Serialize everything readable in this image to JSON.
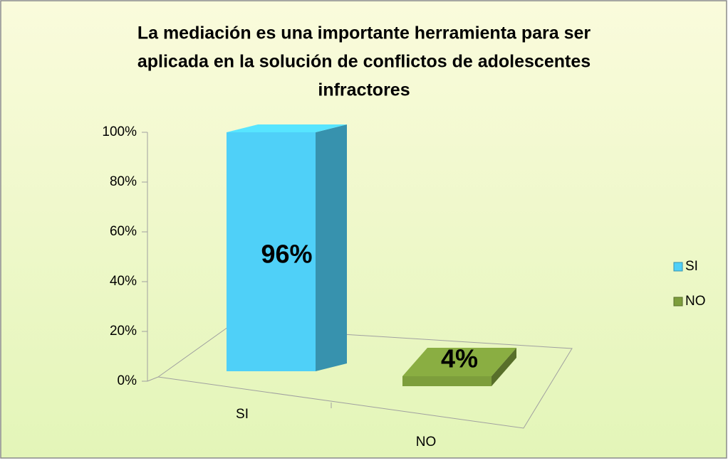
{
  "chart_data": {
    "type": "bar3d",
    "title": [
      "La mediación es una importante herramienta para ser",
      "aplicada en la solución de conflictos de adolescentes",
      "infractores"
    ],
    "categories": [
      "SI",
      "NO"
    ],
    "series": [
      {
        "name": "SI",
        "color": "#4fd0f8",
        "values": [
          96,
          null
        ],
        "value_labels": [
          "96%",
          null
        ]
      },
      {
        "name": "NO",
        "color": "#7d9e3c",
        "values": [
          null,
          4
        ],
        "value_labels": [
          null,
          "4%"
        ]
      }
    ],
    "ylim": [
      0,
      100
    ],
    "yticks": [
      {
        "value": 0,
        "label": "0%"
      },
      {
        "value": 20,
        "label": "20%"
      },
      {
        "value": 40,
        "label": "40%"
      },
      {
        "value": 60,
        "label": "60%"
      },
      {
        "value": 80,
        "label": "80%"
      },
      {
        "value": 100,
        "label": "100%"
      }
    ],
    "legend": "right"
  }
}
